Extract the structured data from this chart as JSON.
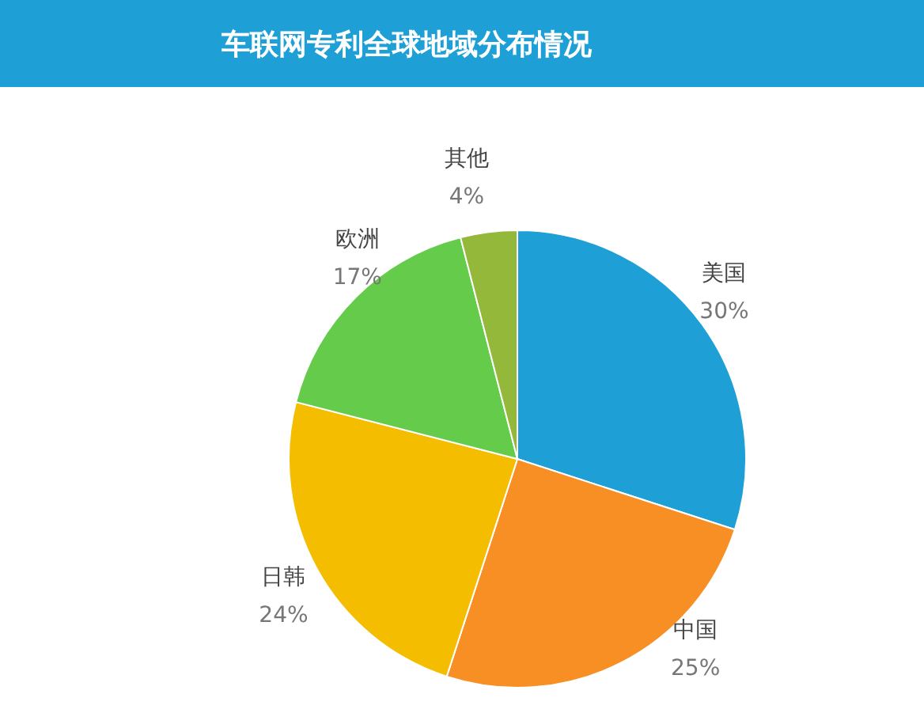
{
  "chart_data": {
    "type": "pie",
    "title": "车联网专利全球地域分布情况",
    "categories": [
      "美国",
      "中国",
      "日韩",
      "欧洲",
      "其他"
    ],
    "values": [
      30,
      25,
      24,
      17,
      4
    ],
    "value_labels": [
      "30%",
      "25%",
      "24%",
      "17%",
      "4%"
    ],
    "colors": [
      "#1e9fd6",
      "#f78f24",
      "#f5bd00",
      "#64cc4a",
      "#94b83a"
    ],
    "legend": false
  }
}
